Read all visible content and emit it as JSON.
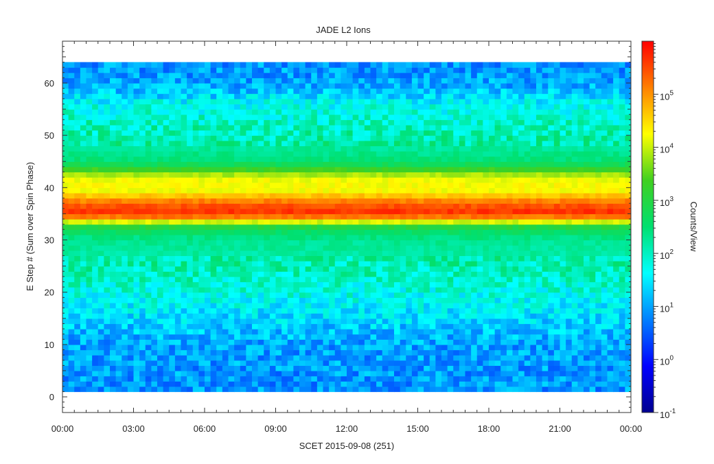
{
  "chart_data": {
    "type": "heatmap",
    "title": "JADE L2 Ions",
    "xlabel": "SCET 2015-09-08 (251)",
    "ylabel": "E Step # (Sum over Spin Phase)",
    "colorbar_label": "Counts/View",
    "x_ticks": [
      "00:00",
      "03:00",
      "06:00",
      "09:00",
      "12:00",
      "15:00",
      "18:00",
      "21:00",
      "00:00"
    ],
    "x_range_hours": [
      0,
      24
    ],
    "y_ticks": [
      0,
      10,
      20,
      30,
      40,
      50,
      60
    ],
    "y_range": [
      -3,
      68
    ],
    "y_data_range": [
      1,
      64
    ],
    "color_scale": "log",
    "colorbar_ticks": [
      {
        "exp": "-1",
        "value": 0.1
      },
      {
        "exp": "0",
        "value": 1
      },
      {
        "exp": "1",
        "value": 10
      },
      {
        "exp": "2",
        "value": 100
      },
      {
        "exp": "3",
        "value": 1000
      },
      {
        "exp": "4",
        "value": 10000
      },
      {
        "exp": "5",
        "value": 100000
      }
    ],
    "colorbar_base": "10",
    "colorbar_range_log10": [
      -1,
      6
    ],
    "energy_profile_log10": [
      {
        "estep": 1,
        "log_counts": 0.9
      },
      {
        "estep": 10,
        "log_counts": 1.0
      },
      {
        "estep": 15,
        "log_counts": 1.4
      },
      {
        "estep": 20,
        "log_counts": 1.8
      },
      {
        "estep": 25,
        "log_counts": 2.1
      },
      {
        "estep": 30,
        "log_counts": 2.3
      },
      {
        "estep": 32,
        "log_counts": 2.7
      },
      {
        "estep": 33,
        "log_counts": 3.3
      },
      {
        "estep": 34,
        "log_counts": 4.8
      },
      {
        "estep": 35,
        "log_counts": 5.6
      },
      {
        "estep": 36,
        "log_counts": 5.7
      },
      {
        "estep": 37,
        "log_counts": 5.2
      },
      {
        "estep": 38,
        "log_counts": 5.0
      },
      {
        "estep": 39,
        "log_counts": 4.3
      },
      {
        "estep": 40,
        "log_counts": 4.2
      },
      {
        "estep": 41,
        "log_counts": 4.3
      },
      {
        "estep": 42,
        "log_counts": 4.1
      },
      {
        "estep": 43,
        "log_counts": 3.6
      },
      {
        "estep": 44,
        "log_counts": 3.0
      },
      {
        "estep": 45,
        "log_counts": 2.5
      },
      {
        "estep": 48,
        "log_counts": 2.2
      },
      {
        "estep": 52,
        "log_counts": 2.0
      },
      {
        "estep": 56,
        "log_counts": 1.7
      },
      {
        "estep": 58,
        "log_counts": 1.3
      },
      {
        "estep": 60,
        "log_counts": 1.0
      },
      {
        "estep": 64,
        "log_counts": 0.9
      }
    ]
  }
}
